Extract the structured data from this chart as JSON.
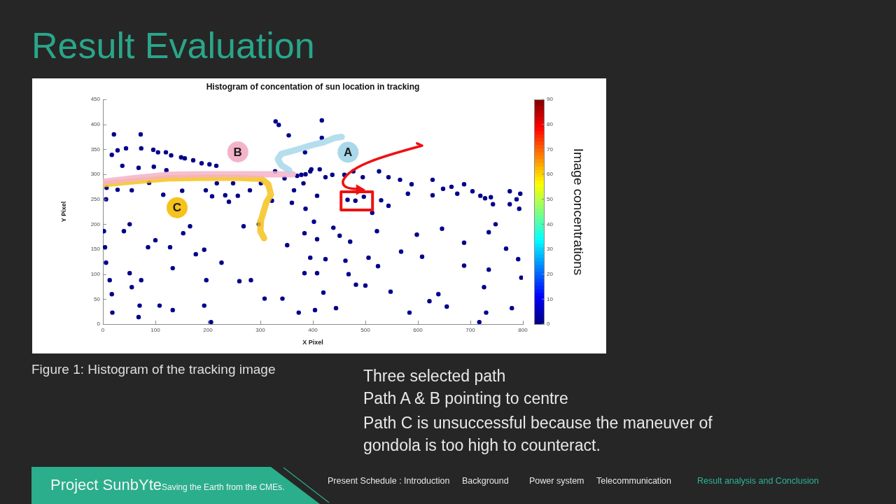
{
  "chart_data": {
    "type": "scatter",
    "title": "Histogram of concentation of sun location in tracking",
    "xlabel": "X Pixel",
    "ylabel": "Y Pixel",
    "clabel": "Image concentrations",
    "xlim": [
      0,
      800
    ],
    "xticks": [
      0,
      100,
      200,
      300,
      400,
      500,
      600,
      700,
      800
    ],
    "ylim": [
      0,
      450
    ],
    "yticks": [
      0,
      50,
      100,
      150,
      200,
      250,
      300,
      350,
      400,
      450
    ],
    "clim": [
      0,
      90
    ],
    "cticks": [
      0,
      10,
      20,
      30,
      40,
      50,
      60,
      70,
      80,
      90
    ],
    "marker": "circle",
    "series": [
      {
        "type": "scatter",
        "x": [
          21,
          72,
          17,
          28,
          44,
          37,
          73,
          96,
          105,
          120,
          130,
          149,
          156,
          172,
          188,
          203,
          216,
          329,
          335,
          354,
          385,
          68,
          97,
          121,
          7,
          28,
          55,
          6,
          88,
          115,
          151,
          196,
          208,
          233,
          217,
          248,
          240,
          257,
          280,
          301,
          328,
          346,
          360,
          364,
          382,
          395,
          386,
          322,
          370,
          378,
          386,
          417,
          417,
          397,
          413,
          424,
          437,
          460,
          477,
          495,
          526,
          544,
          566,
          588,
          628,
          648,
          664,
          688,
          704,
          719,
          739,
          775,
          795,
          408,
          466,
          481,
          497,
          530,
          544,
          581,
          628,
          675,
          728,
          743,
          775,
          793,
          788,
          2,
          4,
          6,
          13,
          17,
          18,
          40,
          51,
          51,
          55,
          73,
          70,
          68,
          86,
          100,
          108,
          128,
          133,
          133,
          153,
          166,
          177,
          193,
          197,
          193,
          206,
          226,
          260,
          268,
          282,
          297,
          308,
          342,
          351,
          373,
          384,
          395,
          384,
          402,
          408,
          424,
          439,
          451,
          462,
          471,
          408,
          404,
          420,
          444,
          468,
          482,
          500,
          506,
          513,
          522,
          524,
          548,
          568,
          584,
          598,
          608,
          622,
          639,
          646,
          655,
          688,
          688,
          717,
          726,
          730,
          735,
          735,
          748,
          768,
          779,
          791,
          797
        ],
        "values": [
          380,
          380,
          339,
          348,
          352,
          317,
          352,
          349,
          344,
          344,
          338,
          334,
          332,
          328,
          322,
          320,
          317,
          406,
          399,
          378,
          344,
          313,
          315,
          308,
          273,
          269,
          268,
          250,
          283,
          259,
          267,
          268,
          256,
          258,
          282,
          282,
          245,
          257,
          268,
          282,
          306,
          292,
          243,
          268,
          282,
          306,
          231,
          247,
          297,
          299,
          300,
          408,
          373,
          310,
          310,
          294,
          299,
          299,
          306,
          294,
          306,
          294,
          289,
          280,
          289,
          271,
          275,
          280,
          266,
          257,
          254,
          266,
          261,
          257,
          249,
          247,
          255,
          248,
          237,
          261,
          258,
          261,
          252,
          240,
          240,
          231,
          250,
          186,
          154,
          123,
          88,
          60,
          23,
          186,
          102,
          200,
          74,
          88,
          37,
          14,
          154,
          168,
          37,
          154,
          112,
          28,
          182,
          196,
          140,
          149,
          88,
          37,
          4,
          123,
          86,
          196,
          88,
          200,
          51,
          51,
          158,
          23,
          102,
          133,
          182,
          205,
          170,
          130,
          193,
          177,
          127,
          165,
          102,
          28,
          63,
          32,
          100,
          79,
          77,
          133,
          223,
          186,
          116,
          65,
          145,
          23,
          179,
          135,
          46,
          60,
          191,
          35,
          163,
          117,
          4,
          74,
          23,
          184,
          109,
          200,
          151,
          32,
          130,
          93
        ],
        "cvalues": [
          1,
          1,
          1,
          1,
          1,
          1,
          1,
          1,
          1,
          1,
          1,
          1,
          1,
          1,
          1,
          1,
          1,
          1,
          1,
          1,
          1,
          1,
          1,
          1,
          1,
          1,
          1,
          1,
          1,
          1,
          1,
          1,
          1,
          1,
          1,
          1,
          1,
          1,
          1,
          1,
          1,
          1,
          1,
          1,
          1,
          1,
          1,
          1,
          1,
          1,
          1,
          1,
          1,
          1,
          1,
          1,
          1,
          1,
          1,
          1,
          1,
          1,
          1,
          1,
          1,
          1,
          1,
          1,
          1,
          1,
          1,
          1,
          1,
          1,
          1,
          1,
          1,
          1,
          1,
          1,
          1,
          1,
          1,
          1,
          1,
          1,
          1,
          1,
          1,
          1,
          1,
          1,
          1,
          1,
          1,
          1,
          1,
          1,
          1,
          1,
          1,
          1,
          1,
          1,
          1,
          1,
          1,
          1,
          1,
          1,
          1,
          1,
          1,
          1,
          1,
          1,
          1,
          1,
          1,
          1,
          1,
          1,
          1,
          1,
          1,
          1,
          1,
          1,
          1,
          1,
          1,
          1,
          1,
          1,
          1,
          1,
          1,
          1,
          1,
          1,
          1,
          1,
          1,
          1,
          1,
          1,
          1,
          1,
          1,
          1,
          1,
          1,
          1,
          1,
          1,
          1,
          1,
          1,
          1,
          1,
          1,
          1,
          1,
          1
        ]
      },
      {
        "type": "line",
        "name": "A",
        "color": "#a8d8ea",
        "marker": "none",
        "x": [
          355,
          340,
          333,
          340,
          368,
          400,
          420,
          442,
          455
        ],
        "values": [
          308,
          318,
          330,
          341,
          349,
          359,
          364,
          373,
          375
        ]
      },
      {
        "type": "line",
        "name": "B",
        "color": "#f4b3c8",
        "marker": "none",
        "x": [
          0,
          57,
          124,
          191,
          257,
          302,
          362
        ],
        "values": [
          285,
          292,
          299,
          300,
          300,
          300,
          300
        ]
      },
      {
        "type": "line",
        "name": "C",
        "color": "#f6c21c",
        "marker": "none",
        "x": [
          0,
          57,
          124,
          191,
          257,
          302,
          315,
          320,
          311,
          301,
          300,
          307
        ],
        "values": [
          280,
          286,
          292,
          293,
          293,
          291,
          280,
          259,
          243,
          207,
          186,
          172
        ]
      }
    ],
    "annotations": [
      "Result Evaluation",
      "Figure 1: Histogram of the tracking image",
      "Three selected path",
      "Path A & B pointing to centre",
      "Path C is unsuccessful because the maneuver of gondola is too high to counteract.",
      "Project SunbYte",
      "Saving the Earth from the CMEs.",
      "Present Schedule : Introduction",
      "Background",
      "Power system",
      "Telecommunication",
      "Result analysis and Conclusion"
    ]
  }
}
